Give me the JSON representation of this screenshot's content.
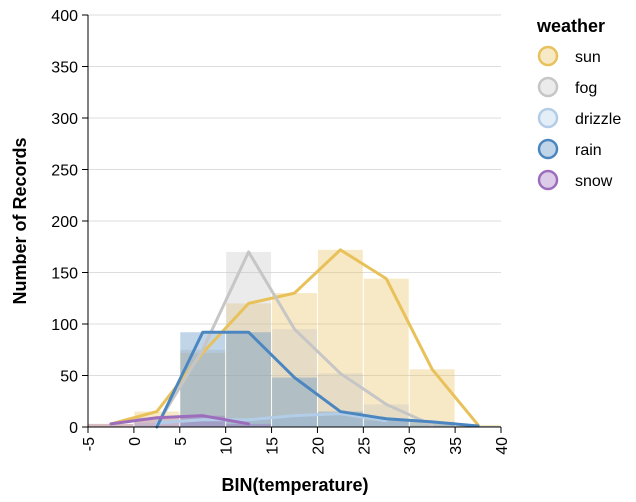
{
  "chart_data": {
    "type": "bar",
    "overlay": "line",
    "xlabel": "BIN(temperature)",
    "ylabel": "Number of Records",
    "xlim": [
      -5,
      40
    ],
    "ylim": [
      0,
      400
    ],
    "x_ticks": [
      -5,
      0,
      5,
      10,
      15,
      20,
      25,
      30,
      35,
      40
    ],
    "y_ticks": [
      0,
      50,
      100,
      150,
      200,
      250,
      300,
      350,
      400
    ],
    "grid": true,
    "legend_position": "right",
    "legend_title": "weather",
    "bin_width": 5,
    "series": [
      {
        "name": "sun",
        "color": "#e8c15a",
        "bin_starts": [
          -5,
          0,
          5,
          10,
          15,
          20,
          25,
          30,
          35
        ],
        "values": [
          3,
          15,
          72,
          120,
          130,
          172,
          144,
          56,
          2
        ]
      },
      {
        "name": "fog",
        "color": "#c6c6c6",
        "bin_starts": [
          0,
          5,
          10,
          15,
          20,
          25,
          30
        ],
        "values": [
          2,
          75,
          170,
          95,
          52,
          22,
          2
        ]
      },
      {
        "name": "drizzle",
        "color": "#b3cde8",
        "bin_starts": [
          0,
          5,
          10,
          15,
          20,
          25
        ],
        "values": [
          4,
          7,
          7,
          11,
          13,
          6
        ]
      },
      {
        "name": "rain",
        "color": "#4c86c0",
        "bin_starts": [
          0,
          5,
          10,
          15,
          20,
          25,
          30,
          35
        ],
        "values": [
          0,
          92,
          92,
          48,
          15,
          8,
          5,
          1
        ]
      },
      {
        "name": "snow",
        "color": "#9d6dbd",
        "bin_starts": [
          -5,
          0,
          5,
          10
        ],
        "values": [
          3,
          9,
          11,
          3
        ]
      }
    ]
  }
}
